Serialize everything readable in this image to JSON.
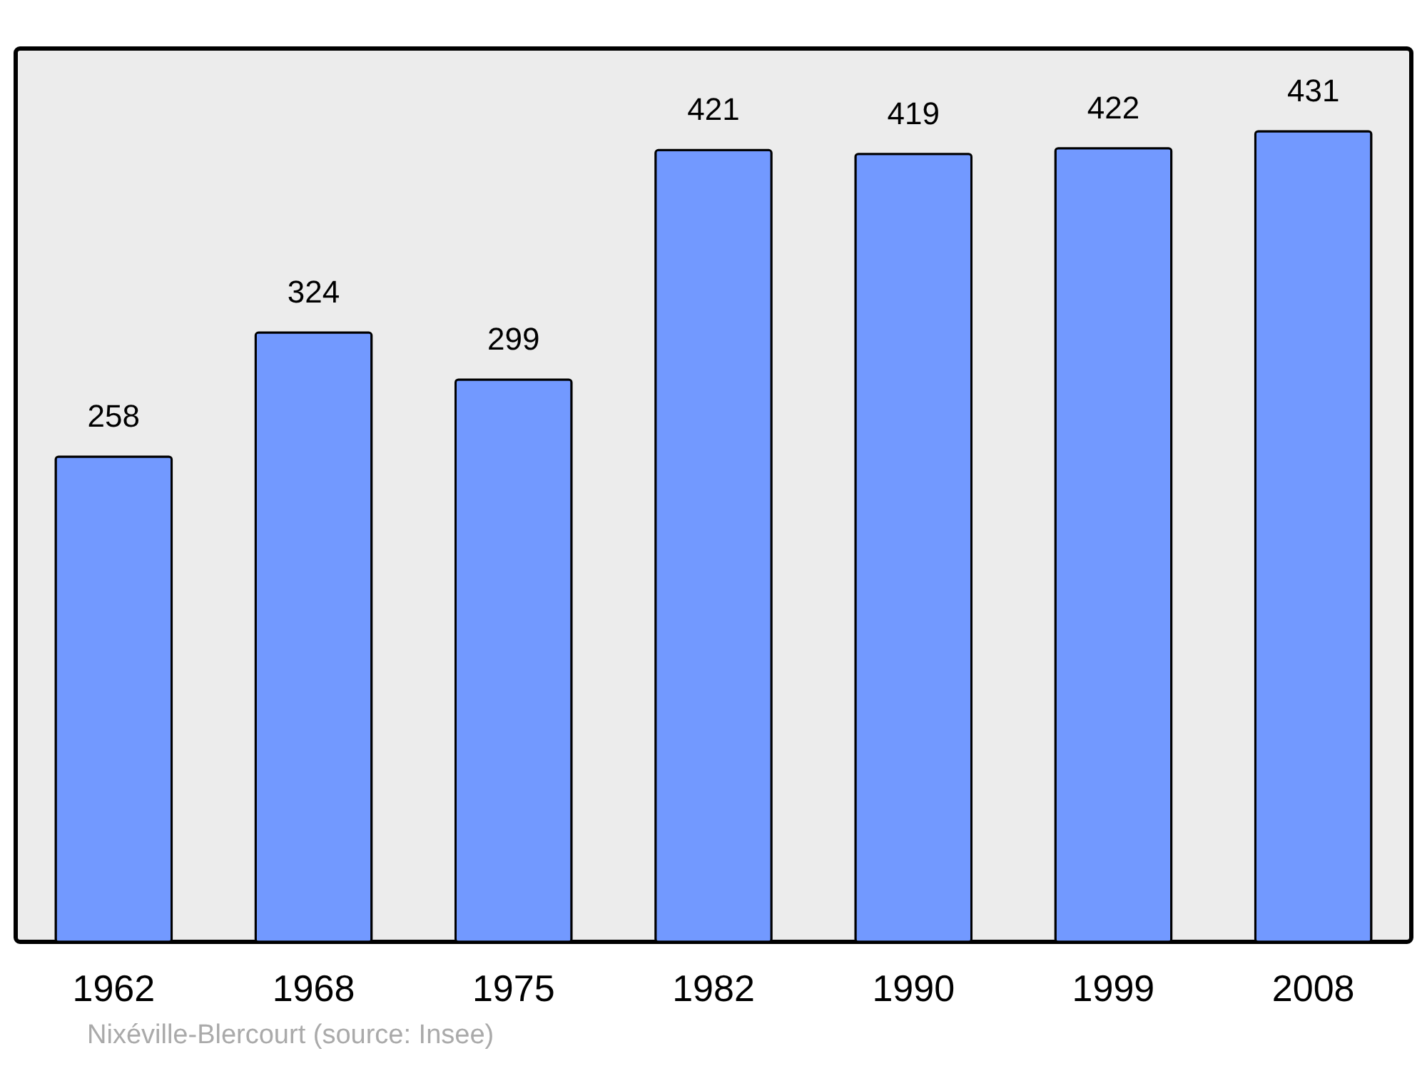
{
  "chart_data": {
    "type": "bar",
    "categories": [
      "1962",
      "1968",
      "1975",
      "1982",
      "1990",
      "1999",
      "2008"
    ],
    "values": [
      258,
      324,
      299,
      421,
      419,
      422,
      431
    ],
    "color": "#7299ff",
    "data_labels": true,
    "annotations": [
      "Nixéville-Blercourt    (source: Insee)"
    ]
  }
}
